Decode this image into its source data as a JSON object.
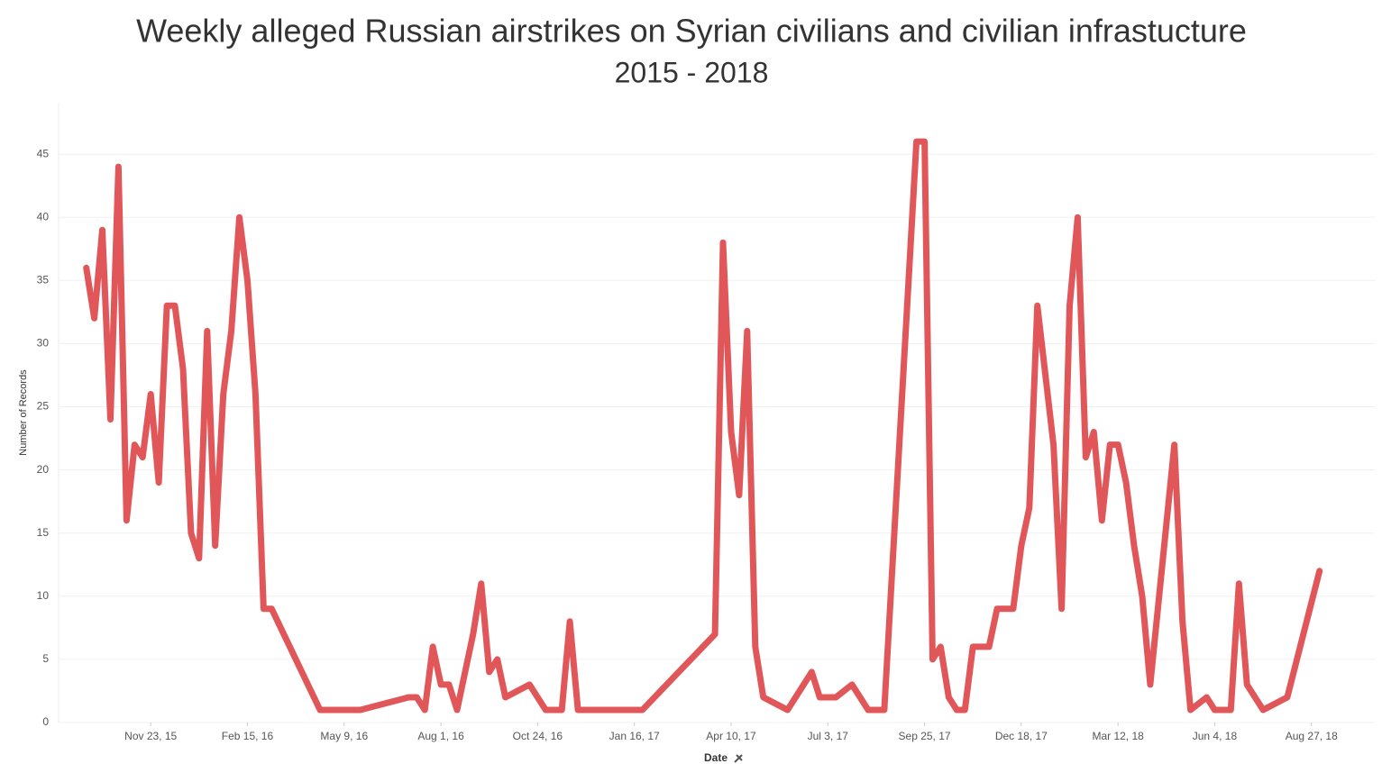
{
  "chart_data": {
    "type": "line",
    "title": "Weekly alleged Russian airstrikes on Syrian civilians and civilian infrastucture",
    "subtitle": "2015 - 2018",
    "x_label": "Date",
    "y_label": "Number of Records",
    "x": [
      "2015-09-28",
      "2015-10-05",
      "2015-10-12",
      "2015-10-19",
      "2015-10-26",
      "2015-11-02",
      "2015-11-09",
      "2015-11-16",
      "2015-11-23",
      "2015-11-30",
      "2015-12-07",
      "2015-12-14",
      "2015-12-21",
      "2015-12-28",
      "2016-01-04",
      "2016-01-11",
      "2016-01-18",
      "2016-01-25",
      "2016-02-01",
      "2016-02-08",
      "2016-02-15",
      "2016-02-22",
      "2016-02-29",
      "2016-03-07",
      "2016-04-18",
      "2016-05-23",
      "2016-07-04",
      "2016-07-11",
      "2016-07-18",
      "2016-07-25",
      "2016-08-01",
      "2016-08-08",
      "2016-08-15",
      "2016-08-29",
      "2016-09-05",
      "2016-09-12",
      "2016-09-19",
      "2016-09-26",
      "2016-10-17",
      "2016-10-31",
      "2016-11-14",
      "2016-11-21",
      "2016-11-28",
      "2017-01-23",
      "2017-03-27",
      "2017-04-03",
      "2017-04-10",
      "2017-04-17",
      "2017-04-24",
      "2017-05-01",
      "2017-05-08",
      "2017-05-29",
      "2017-06-19",
      "2017-06-26",
      "2017-07-10",
      "2017-07-24",
      "2017-08-07",
      "2017-08-21",
      "2017-09-18",
      "2017-09-25",
      "2017-10-02",
      "2017-10-09",
      "2017-10-16",
      "2017-10-23",
      "2017-10-30",
      "2017-11-06",
      "2017-11-20",
      "2017-11-27",
      "2017-12-11",
      "2017-12-18",
      "2017-12-25",
      "2018-01-01",
      "2018-01-15",
      "2018-01-22",
      "2018-01-29",
      "2018-02-05",
      "2018-02-12",
      "2018-02-19",
      "2018-02-26",
      "2018-03-05",
      "2018-03-12",
      "2018-03-19",
      "2018-03-26",
      "2018-04-02",
      "2018-04-09",
      "2018-04-30",
      "2018-05-07",
      "2018-05-14",
      "2018-05-28",
      "2018-06-04",
      "2018-06-18",
      "2018-06-25",
      "2018-07-02",
      "2018-07-16",
      "2018-08-06",
      "2018-09-03"
    ],
    "series": [
      {
        "color": "#e15759",
        "values": [
          36,
          32,
          39,
          24,
          44,
          16,
          22,
          21,
          26,
          19,
          33,
          33,
          28,
          15,
          13,
          31,
          14,
          26,
          31,
          40,
          35,
          26,
          9,
          9,
          1,
          1,
          2,
          2,
          1,
          6,
          3,
          3,
          1,
          7,
          11,
          4,
          5,
          2,
          3,
          1,
          1,
          8,
          1,
          1,
          7,
          38,
          23,
          18,
          31,
          6,
          2,
          1,
          4,
          2,
          2,
          3,
          1,
          1,
          46,
          46,
          5,
          6,
          2,
          1,
          1,
          6,
          6,
          9,
          9,
          14,
          17,
          33,
          22,
          9,
          33,
          40,
          21,
          23,
          16,
          22,
          22,
          19,
          14,
          10,
          3,
          22,
          8,
          1,
          2,
          1,
          1,
          11,
          3,
          1,
          2,
          12
        ]
      }
    ],
    "xlim": [
      "2015-09-04",
      "2018-10-21"
    ],
    "xticks": [
      {
        "value": "2015-11-23",
        "label": "Nov 23, 15"
      },
      {
        "value": "2016-02-15",
        "label": "Feb 15, 16"
      },
      {
        "value": "2016-05-09",
        "label": "May 9, 16"
      },
      {
        "value": "2016-08-01",
        "label": "Aug 1, 16"
      },
      {
        "value": "2016-10-24",
        "label": "Oct 24, 16"
      },
      {
        "value": "2017-01-16",
        "label": "Jan 16, 17"
      },
      {
        "value": "2017-04-10",
        "label": "Apr 10, 17"
      },
      {
        "value": "2017-07-03",
        "label": "Jul 3, 17"
      },
      {
        "value": "2017-09-25",
        "label": "Sep 25, 17"
      },
      {
        "value": "2017-12-18",
        "label": "Dec 18, 17"
      },
      {
        "value": "2018-03-12",
        "label": "Mar 12, 18"
      },
      {
        "value": "2018-06-04",
        "label": "Jun 4, 18"
      },
      {
        "value": "2018-08-27",
        "label": "Aug 27, 18"
      }
    ],
    "ylim": [
      0,
      49
    ],
    "yticks": [
      0,
      5,
      10,
      15,
      20,
      25,
      30,
      35,
      40,
      45
    ],
    "grid": true
  }
}
